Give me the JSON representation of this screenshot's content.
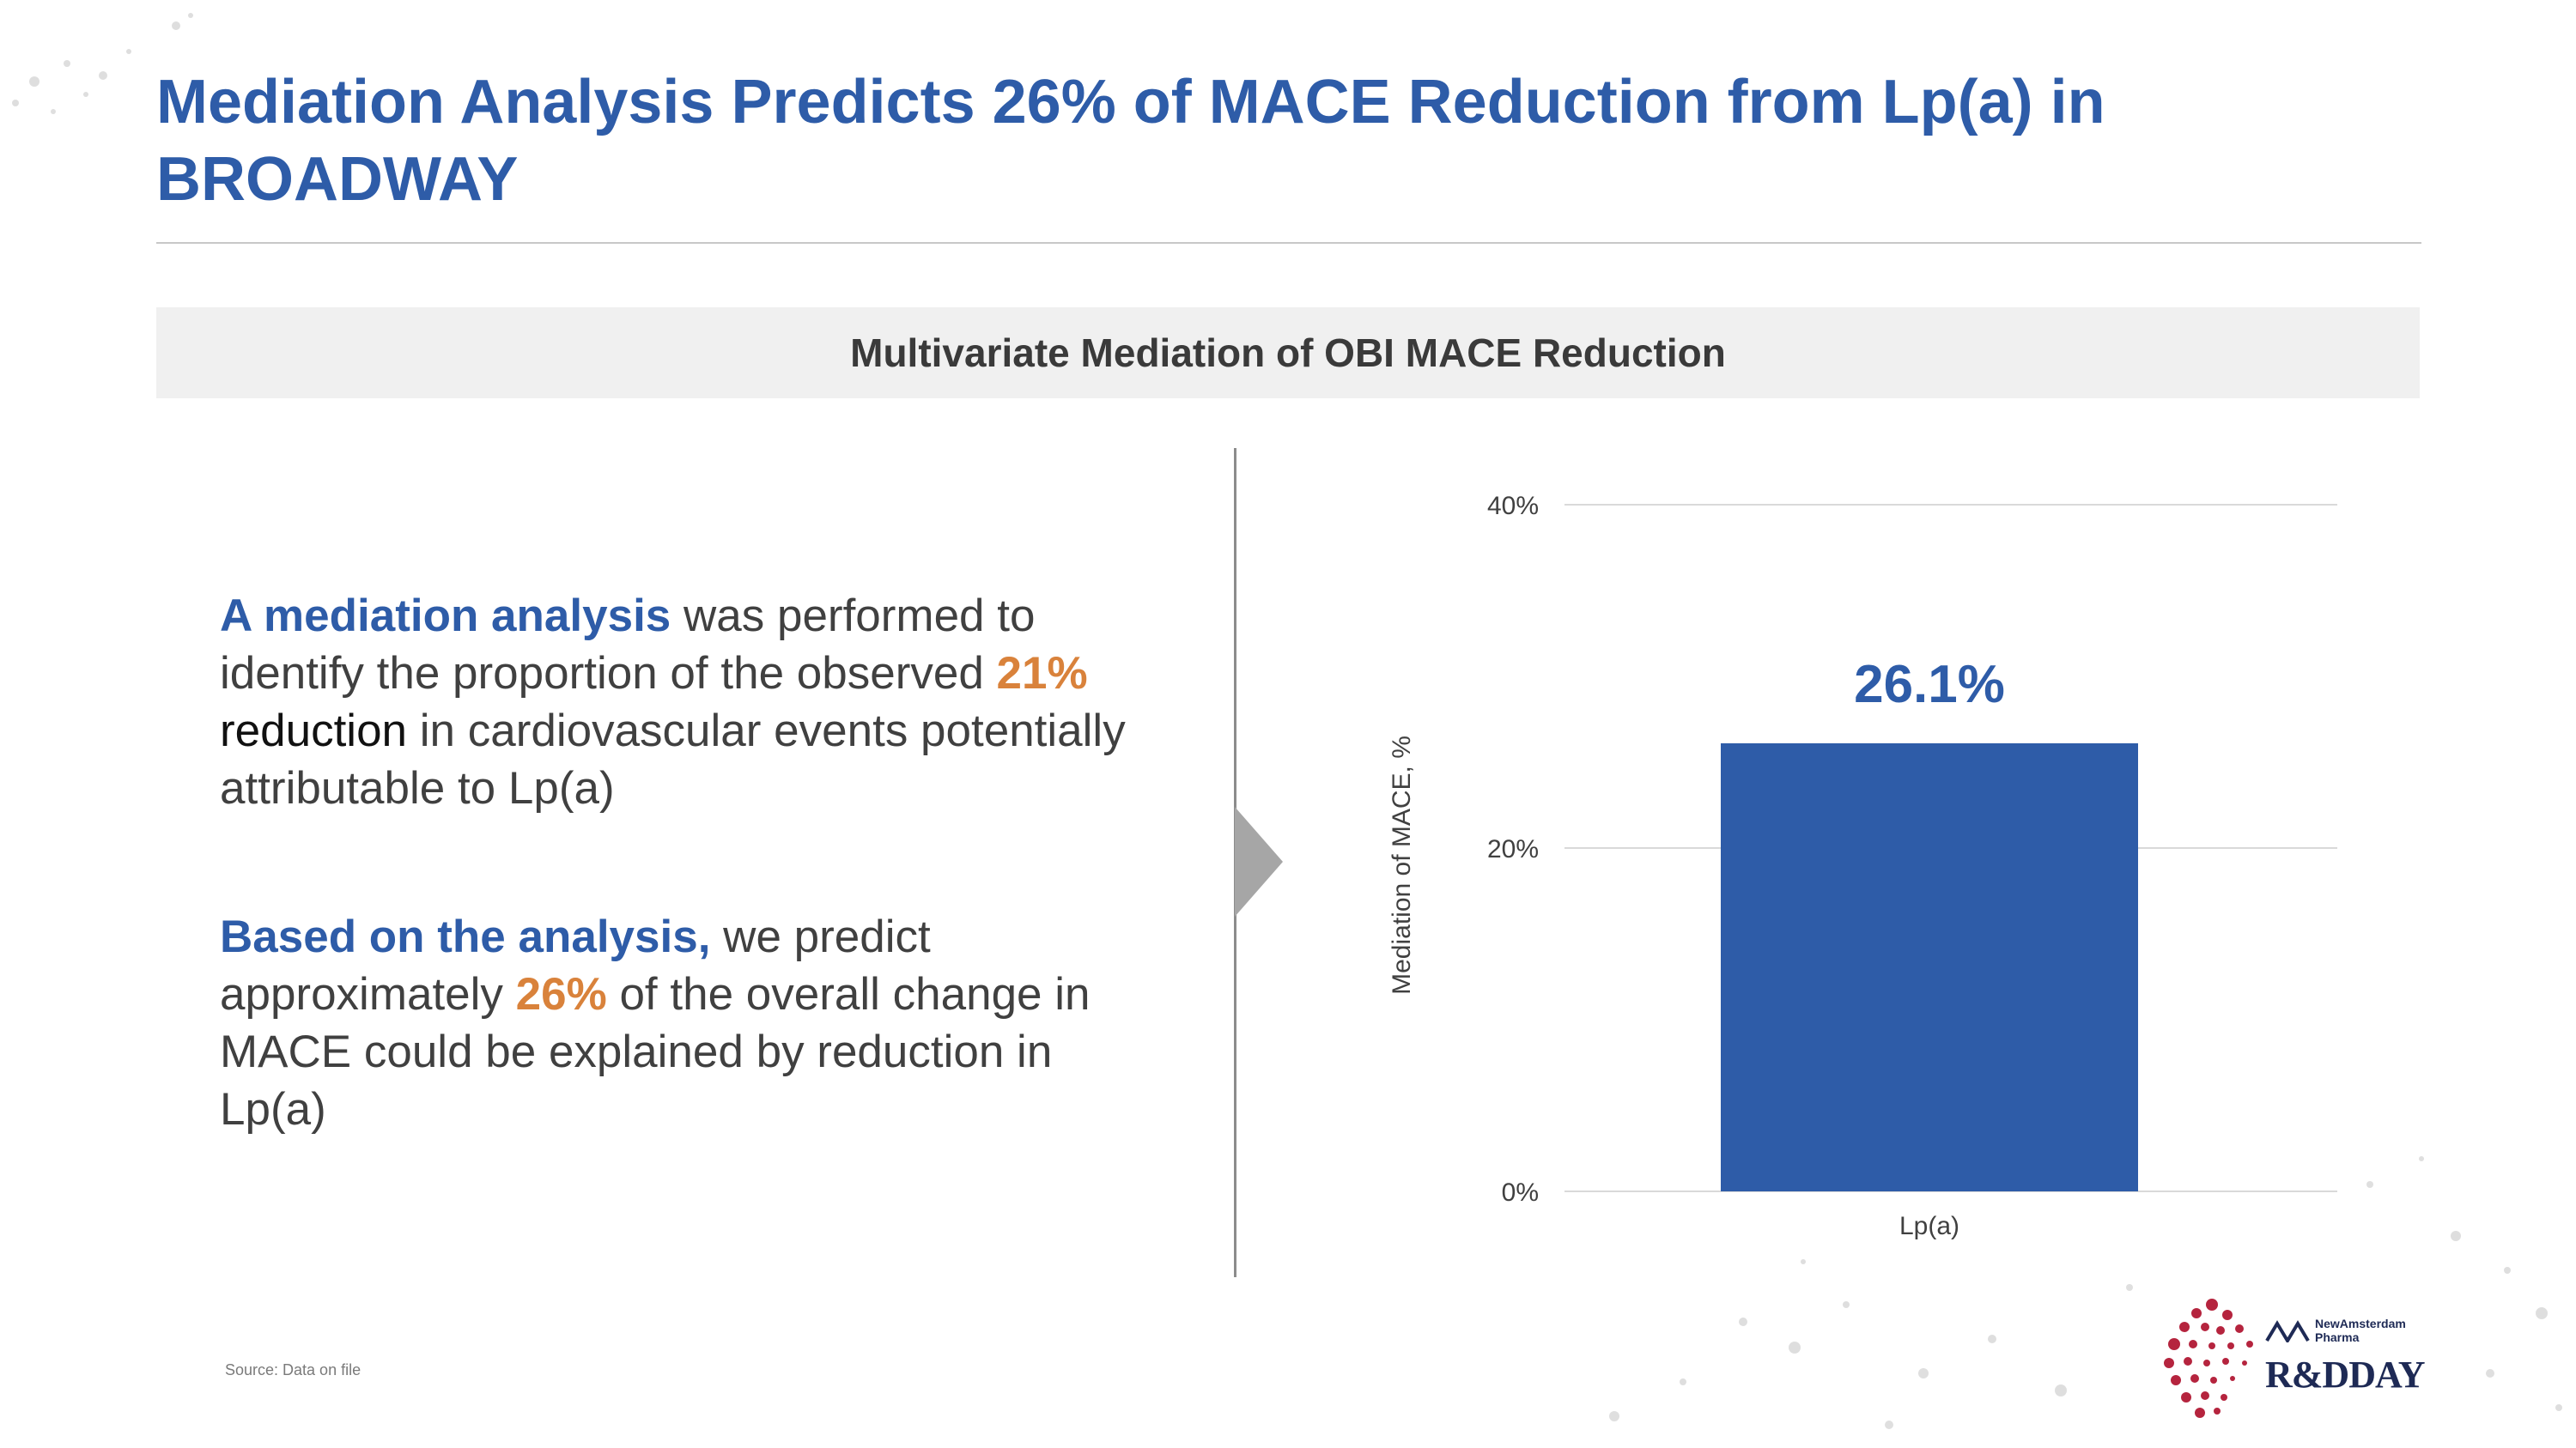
{
  "slide": {
    "title": "Mediation Analysis Predicts 26% of MACE Reduction from Lp(a) in BROADWAY",
    "banner": "Multivariate Mediation of OBI MACE Reduction",
    "paragraph1": {
      "lead": "A mediation analysis",
      "text1": " was performed to identify the proportion of the observed ",
      "pct": "21%",
      "word": " reduction",
      "text2": " in cardiovascular events potentially attributable to Lp(a)"
    },
    "paragraph2": {
      "lead": "Based on the analysis,",
      "text1": " we predict approximately ",
      "pct": "26%",
      "text2": " of the overall change in MACE could be explained by reduction in Lp(a)"
    },
    "source": "Source: Data on file"
  },
  "logo": {
    "brand_line1": "NewAmsterdam",
    "brand_line2": "Pharma",
    "event": "R&DDAY"
  },
  "colors": {
    "primary_blue": "#2e5ca8",
    "accent_orange": "#d9823b",
    "logo_red": "#b5243e",
    "logo_navy": "#1e2a55"
  },
  "chart_data": {
    "type": "bar",
    "categories": [
      "Lp(a)"
    ],
    "values": [
      26.1
    ],
    "data_labels": [
      "26.1%"
    ],
    "title": "",
    "xlabel": "",
    "ylabel": "Mediation of MACE, %",
    "ylim": [
      0,
      40
    ],
    "yticks": [
      0,
      20,
      40
    ],
    "ytick_labels": [
      "0%",
      "20%",
      "40%"
    ],
    "grid": true,
    "bar_color": "#2e5ca8"
  }
}
